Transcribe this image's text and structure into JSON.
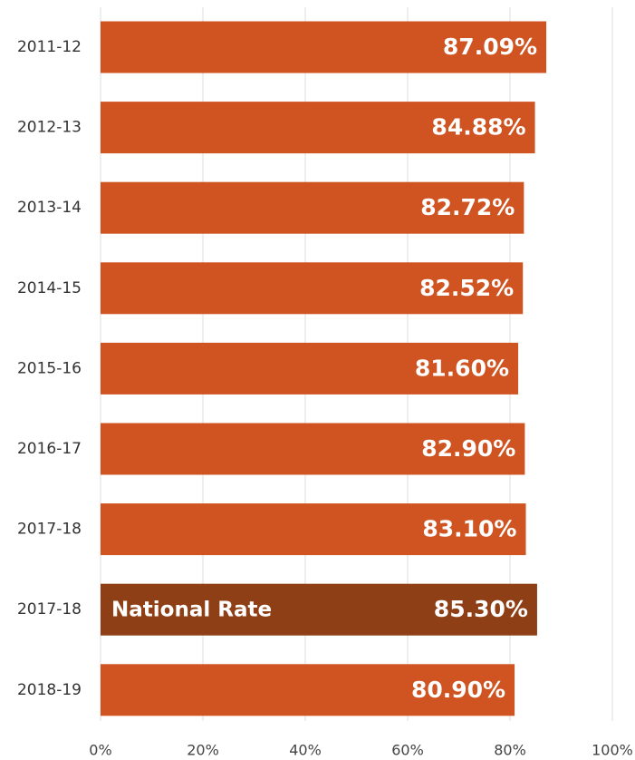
{
  "chart_data": {
    "type": "bar",
    "orientation": "horizontal",
    "categories": [
      "2011-12",
      "2012-13",
      "2013-14",
      "2014-15",
      "2015-16",
      "2016-17",
      "2017-18",
      "2017-18",
      "2018-19"
    ],
    "values": [
      87.09,
      84.88,
      82.72,
      82.52,
      81.6,
      82.9,
      83.1,
      85.3,
      80.9
    ],
    "value_labels": [
      "87.09%",
      "84.88%",
      "82.72%",
      "82.52%",
      "81.60%",
      "82.90%",
      "83.10%",
      "85.30%",
      "80.90%"
    ],
    "colors": [
      "#d05421",
      "#d05421",
      "#d05421",
      "#d05421",
      "#d05421",
      "#d05421",
      "#d05421",
      "#8f3f15",
      "#d05421"
    ],
    "annotations": [
      null,
      null,
      null,
      null,
      null,
      null,
      null,
      "National Rate",
      null
    ],
    "xlim": [
      0,
      100
    ],
    "xticks": [
      {
        "value": 0,
        "label": "0%"
      },
      {
        "value": 20,
        "label": "20%"
      },
      {
        "value": 40,
        "label": "40%"
      },
      {
        "value": 60,
        "label": "60%"
      },
      {
        "value": 80,
        "label": "80%"
      },
      {
        "value": 100,
        "label": "100%"
      }
    ],
    "grid": true
  }
}
